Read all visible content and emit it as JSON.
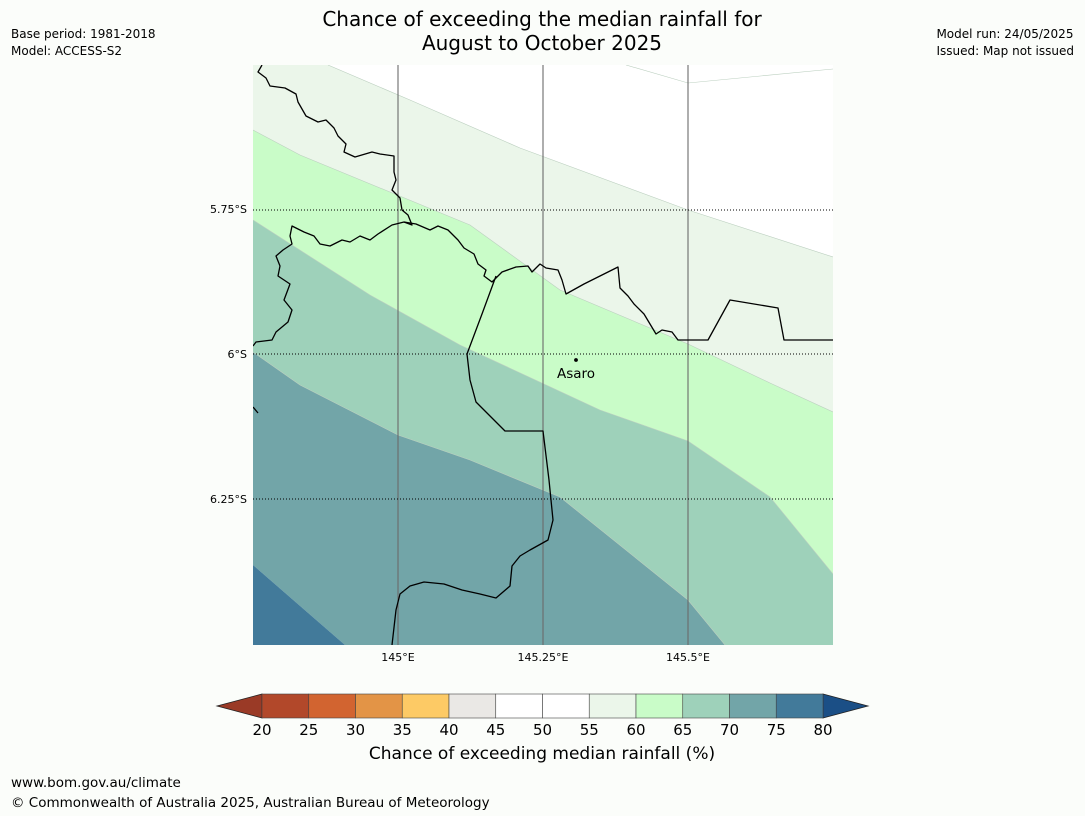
{
  "title": {
    "line1": "Chance of exceeding the median rainfall for",
    "line2": "August to October 2025"
  },
  "left_meta": {
    "base_period": "Base period: 1981-2018",
    "model": "Model: ACCESS-S2"
  },
  "right_meta": {
    "model_run": "Model run: 24/05/2025",
    "issued": "Issued: Map not issued"
  },
  "axes": {
    "lat_labels": [
      "5.75°S",
      "6°S",
      "6.25°S"
    ],
    "lon_labels": [
      "145°E",
      "145.25°E",
      "145.5°E"
    ]
  },
  "place": {
    "name": "Asaro"
  },
  "colorbar": {
    "ticks": [
      "20",
      "25",
      "30",
      "35",
      "40",
      "45",
      "50",
      "55",
      "60",
      "65",
      "70",
      "75",
      "80"
    ],
    "colors": [
      "#b2482a",
      "#d26430",
      "#e39446",
      "#fdca65",
      "#eae8e5",
      "#ffffff",
      "#ffffff",
      "#ebf6ea",
      "#c9fcc8",
      "#9ed1ba",
      "#72a5a8",
      "#427a9a"
    ],
    "under_color": "#9a3a26",
    "over_color": "#1b4f86",
    "label": "Chance of exceeding median rainfall (%)"
  },
  "footer": {
    "url": "www.bom.gov.au/climate",
    "copyright": "© Commonwealth of Australia 2025, Australian Bureau of Meteorology"
  }
}
